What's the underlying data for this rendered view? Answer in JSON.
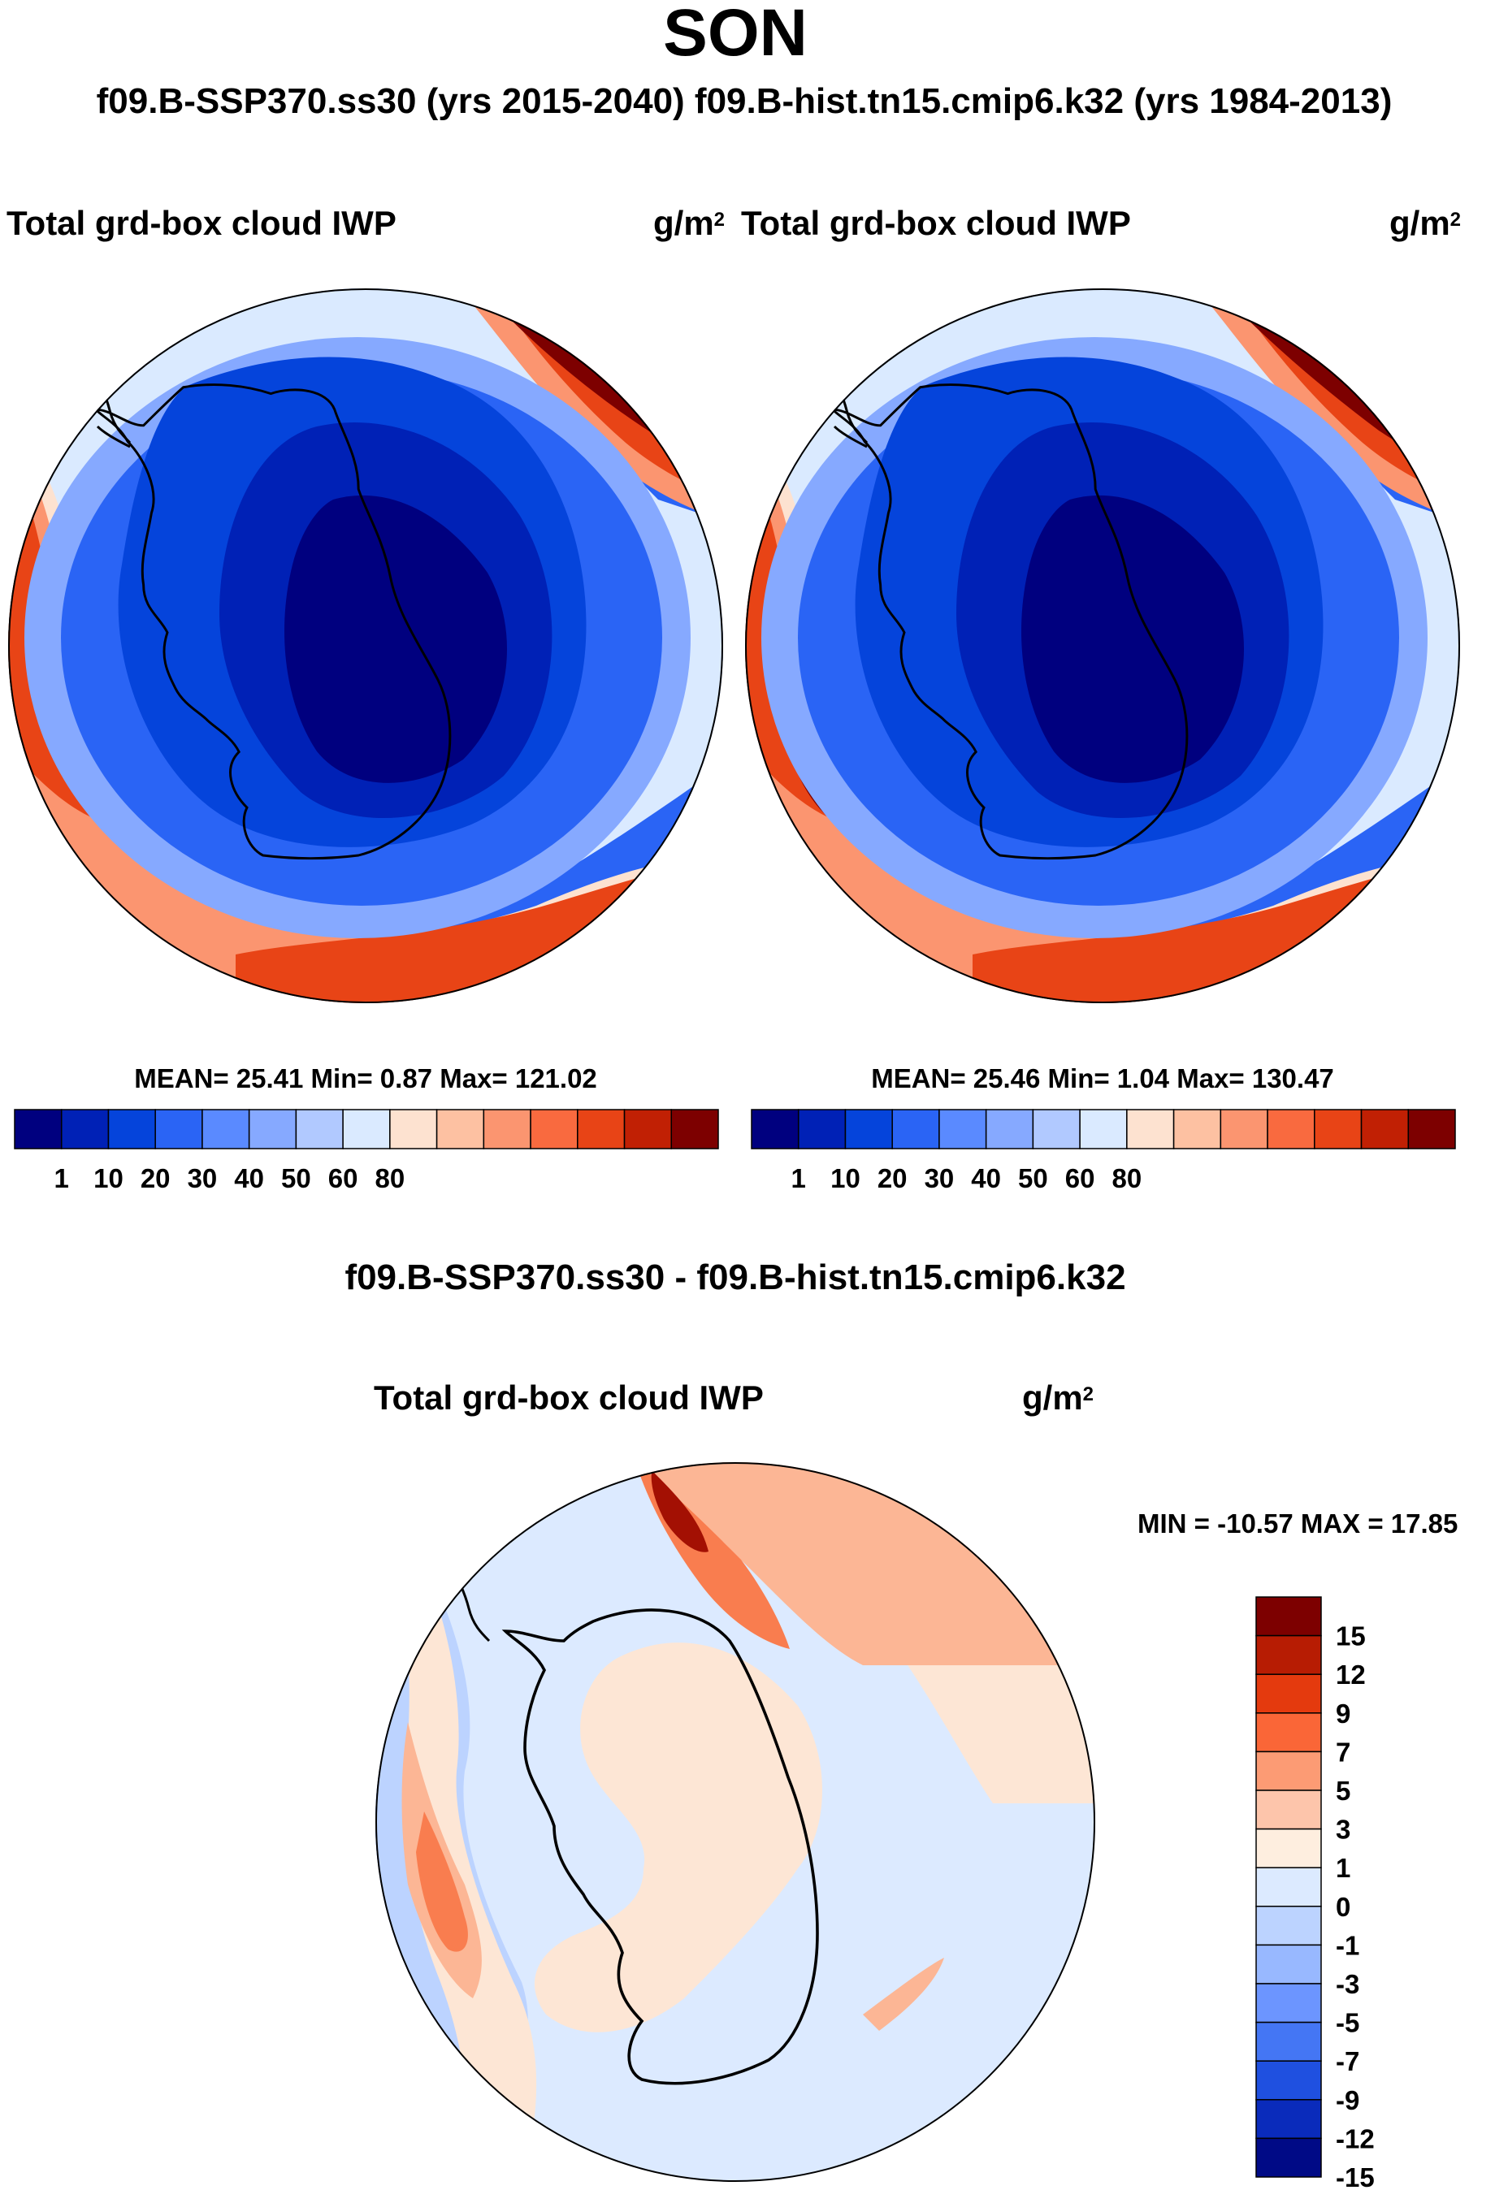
{
  "header": {
    "season": "SON",
    "subtitle": "f09.B-SSP370.ss30 (yrs 2015-2040)  f09.B-hist.tn15.cmip6.k32 (yrs 1984-2013)"
  },
  "panels": [
    {
      "variable": "Total grd-box cloud IWP",
      "unit_base": "g/m",
      "unit_exp": "2",
      "stats": "MEAN=  25.41  Min=   0.87  Max= 121.02"
    },
    {
      "variable": "Total grd-box cloud IWP",
      "unit_base": "g/m",
      "unit_exp": "2",
      "stats": "MEAN=  25.46  Min=   1.04  Max= 130.47"
    }
  ],
  "abs_colorbar": {
    "colors": [
      "#00007f",
      "#0021b6",
      "#0544db",
      "#2a64f5",
      "#5a8aff",
      "#86a9ff",
      "#b1c9ff",
      "#daeaff",
      "#fde2d0",
      "#fdc1a2",
      "#fb9570",
      "#f96a3f",
      "#e84416",
      "#c12004",
      "#7d0000"
    ],
    "tick_labels": [
      "1",
      "10",
      "20",
      "30",
      "40",
      "50",
      "60",
      "80"
    ]
  },
  "difference": {
    "title": "f09.B-SSP370.ss30 - f09.B-hist.tn15.cmip6.k32",
    "variable": "Total grd-box cloud IWP",
    "unit_base": "g/m",
    "unit_exp": "2",
    "minmax": "MIN = -10.57 MAX =  17.85"
  },
  "diff_colorbar": {
    "colors": [
      "#7d0000",
      "#b71c03",
      "#e43a0e",
      "#fa6637",
      "#fc9b74",
      "#fdc5ab",
      "#feeedf",
      "#dceaff",
      "#bcd3ff",
      "#98b8ff",
      "#6c95ff",
      "#4476f4",
      "#1f50e0",
      "#0a2bbb",
      "#000a86"
    ],
    "tick_labels": [
      "15",
      "12",
      "9",
      "7",
      "5",
      "3",
      "1",
      "0",
      "-1",
      "-3",
      "-5",
      "-7",
      "-9",
      "-12",
      "-15"
    ]
  },
  "map_colors": {
    "dark_red": "#7d0000",
    "red": "#e84416",
    "orange": "#fb9570",
    "peach": "#fde2d0",
    "pale_blue": "#daeaff",
    "light_blue": "#86a9ff",
    "mid_blue": "#2a64f5",
    "blue": "#0544db",
    "deep_blue": "#0021b6",
    "navy": "#00007f",
    "diff_pale": "#dceaff",
    "diff_peach": "#fde6d5",
    "diff_light_red": "#fcb695",
    "diff_red": "#f97d4f",
    "diff_darkred": "#a31003",
    "diff_blue": "#6c95ff",
    "diff_deep_blue": "#1f50e0",
    "diff_light_blue": "#bcd3ff",
    "coast": "#000000"
  }
}
